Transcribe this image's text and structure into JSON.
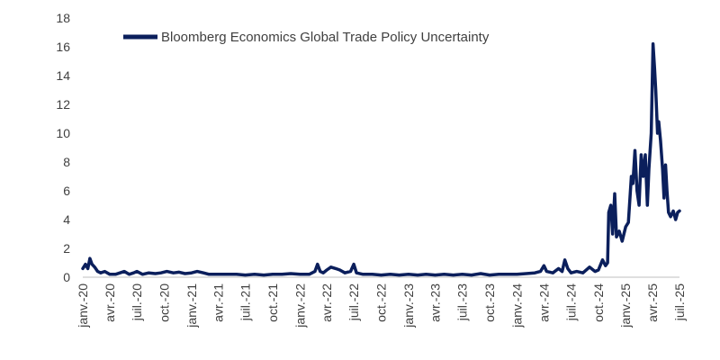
{
  "chart_data": {
    "type": "line",
    "title": "",
    "xlabel": "",
    "ylabel": "",
    "ylim": [
      0,
      18
    ],
    "yticks": [
      0,
      2,
      4,
      6,
      8,
      10,
      12,
      14,
      16,
      18
    ],
    "xlim": [
      "2020-01-01",
      "2025-07-01"
    ],
    "xticks": [
      {
        "date": "2020-01-01",
        "label": "janv.-20"
      },
      {
        "date": "2020-04-01",
        "label": "avr.-20"
      },
      {
        "date": "2020-07-01",
        "label": "juil.-20"
      },
      {
        "date": "2020-10-01",
        "label": "oct.-20"
      },
      {
        "date": "2021-01-01",
        "label": "janv.-21"
      },
      {
        "date": "2021-04-01",
        "label": "avr.-21"
      },
      {
        "date": "2021-07-01",
        "label": "juil.-21"
      },
      {
        "date": "2021-10-01",
        "label": "oct.-21"
      },
      {
        "date": "2022-01-01",
        "label": "janv.-22"
      },
      {
        "date": "2022-04-01",
        "label": "avr.-22"
      },
      {
        "date": "2022-07-01",
        "label": "juil.-22"
      },
      {
        "date": "2022-10-01",
        "label": "oct.-22"
      },
      {
        "date": "2023-01-01",
        "label": "janv.-23"
      },
      {
        "date": "2023-04-01",
        "label": "avr.-23"
      },
      {
        "date": "2023-07-01",
        "label": "juil.-23"
      },
      {
        "date": "2023-10-01",
        "label": "oct.-23"
      },
      {
        "date": "2024-01-01",
        "label": "janv.-24"
      },
      {
        "date": "2024-04-01",
        "label": "avr.-24"
      },
      {
        "date": "2024-07-01",
        "label": "juil.-24"
      },
      {
        "date": "2024-10-01",
        "label": "oct.-24"
      },
      {
        "date": "2025-01-01",
        "label": "janv.-25"
      },
      {
        "date": "2025-04-01",
        "label": "avr.-25"
      },
      {
        "date": "2025-07-01",
        "label": "juil.-25"
      }
    ],
    "grid": false,
    "legend_position": "top-left",
    "series": [
      {
        "name": "Bloomberg Economics Global Trade Policy Uncertainty",
        "color": "#0b1f5c",
        "points": [
          [
            "2020-01-01",
            0.6
          ],
          [
            "2020-01-10",
            0.9
          ],
          [
            "2020-01-18",
            0.6
          ],
          [
            "2020-01-25",
            1.3
          ],
          [
            "2020-02-01",
            0.9
          ],
          [
            "2020-02-10",
            0.7
          ],
          [
            "2020-02-20",
            0.4
          ],
          [
            "2020-03-01",
            0.3
          ],
          [
            "2020-03-15",
            0.4
          ],
          [
            "2020-04-01",
            0.2
          ],
          [
            "2020-04-20",
            0.2
          ],
          [
            "2020-05-05",
            0.3
          ],
          [
            "2020-05-20",
            0.4
          ],
          [
            "2020-06-05",
            0.2
          ],
          [
            "2020-06-20",
            0.3
          ],
          [
            "2020-07-01",
            0.4
          ],
          [
            "2020-07-20",
            0.2
          ],
          [
            "2020-08-10",
            0.3
          ],
          [
            "2020-09-01",
            0.25
          ],
          [
            "2020-09-20",
            0.3
          ],
          [
            "2020-10-10",
            0.4
          ],
          [
            "2020-11-01",
            0.3
          ],
          [
            "2020-11-20",
            0.35
          ],
          [
            "2020-12-10",
            0.25
          ],
          [
            "2021-01-01",
            0.3
          ],
          [
            "2021-01-20",
            0.4
          ],
          [
            "2021-02-10",
            0.3
          ],
          [
            "2021-03-01",
            0.2
          ],
          [
            "2021-04-01",
            0.2
          ],
          [
            "2021-05-01",
            0.2
          ],
          [
            "2021-06-01",
            0.2
          ],
          [
            "2021-07-01",
            0.15
          ],
          [
            "2021-08-01",
            0.2
          ],
          [
            "2021-09-01",
            0.15
          ],
          [
            "2021-10-01",
            0.2
          ],
          [
            "2021-11-01",
            0.2
          ],
          [
            "2021-12-01",
            0.25
          ],
          [
            "2022-01-01",
            0.2
          ],
          [
            "2022-02-01",
            0.2
          ],
          [
            "2022-02-20",
            0.4
          ],
          [
            "2022-03-01",
            0.9
          ],
          [
            "2022-03-10",
            0.4
          ],
          [
            "2022-03-20",
            0.3
          ],
          [
            "2022-04-01",
            0.5
          ],
          [
            "2022-04-15",
            0.7
          ],
          [
            "2022-05-01",
            0.6
          ],
          [
            "2022-05-15",
            0.5
          ],
          [
            "2022-06-01",
            0.3
          ],
          [
            "2022-06-20",
            0.4
          ],
          [
            "2022-07-01",
            0.9
          ],
          [
            "2022-07-10",
            0.3
          ],
          [
            "2022-08-01",
            0.2
          ],
          [
            "2022-09-01",
            0.2
          ],
          [
            "2022-10-01",
            0.15
          ],
          [
            "2022-11-01",
            0.2
          ],
          [
            "2022-12-01",
            0.15
          ],
          [
            "2023-01-01",
            0.2
          ],
          [
            "2023-02-01",
            0.15
          ],
          [
            "2023-03-01",
            0.2
          ],
          [
            "2023-04-01",
            0.15
          ],
          [
            "2023-05-01",
            0.2
          ],
          [
            "2023-06-01",
            0.15
          ],
          [
            "2023-07-01",
            0.2
          ],
          [
            "2023-08-01",
            0.15
          ],
          [
            "2023-09-01",
            0.25
          ],
          [
            "2023-10-01",
            0.15
          ],
          [
            "2023-11-01",
            0.2
          ],
          [
            "2023-12-01",
            0.2
          ],
          [
            "2024-01-01",
            0.2
          ],
          [
            "2024-02-01",
            0.25
          ],
          [
            "2024-03-01",
            0.3
          ],
          [
            "2024-03-20",
            0.4
          ],
          [
            "2024-04-01",
            0.8
          ],
          [
            "2024-04-10",
            0.4
          ],
          [
            "2024-05-01",
            0.3
          ],
          [
            "2024-05-20",
            0.6
          ],
          [
            "2024-06-01",
            0.4
          ],
          [
            "2024-06-10",
            1.2
          ],
          [
            "2024-06-20",
            0.6
          ],
          [
            "2024-07-01",
            0.3
          ],
          [
            "2024-07-20",
            0.4
          ],
          [
            "2024-08-10",
            0.3
          ],
          [
            "2024-09-01",
            0.7
          ],
          [
            "2024-09-20",
            0.4
          ],
          [
            "2024-10-01",
            0.5
          ],
          [
            "2024-10-15",
            1.2
          ],
          [
            "2024-10-25",
            0.8
          ],
          [
            "2024-11-01",
            1.0
          ],
          [
            "2024-11-05",
            4.5
          ],
          [
            "2024-11-12",
            5.0
          ],
          [
            "2024-11-18",
            3.0
          ],
          [
            "2024-11-25",
            5.8
          ],
          [
            "2024-12-01",
            2.8
          ],
          [
            "2024-12-10",
            3.2
          ],
          [
            "2024-12-20",
            2.5
          ],
          [
            "2025-01-01",
            3.5
          ],
          [
            "2025-01-10",
            3.8
          ],
          [
            "2025-01-20",
            7.0
          ],
          [
            "2025-01-25",
            6.5
          ],
          [
            "2025-02-01",
            8.8
          ],
          [
            "2025-02-08",
            6.0
          ],
          [
            "2025-02-15",
            5.0
          ],
          [
            "2025-02-22",
            8.5
          ],
          [
            "2025-03-01",
            7.0
          ],
          [
            "2025-03-08",
            8.5
          ],
          [
            "2025-03-15",
            5.0
          ],
          [
            "2025-03-20",
            7.5
          ],
          [
            "2025-03-28",
            10.0
          ],
          [
            "2025-04-03",
            16.2
          ],
          [
            "2025-04-08",
            14.5
          ],
          [
            "2025-04-12",
            13.0
          ],
          [
            "2025-04-18",
            10.0
          ],
          [
            "2025-04-22",
            10.8
          ],
          [
            "2025-04-28",
            9.5
          ],
          [
            "2025-05-05",
            7.5
          ],
          [
            "2025-05-10",
            5.5
          ],
          [
            "2025-05-15",
            7.8
          ],
          [
            "2025-05-20",
            6.0
          ],
          [
            "2025-05-25",
            4.5
          ],
          [
            "2025-06-01",
            4.2
          ],
          [
            "2025-06-10",
            4.6
          ],
          [
            "2025-06-18",
            4.0
          ],
          [
            "2025-06-25",
            4.5
          ],
          [
            "2025-07-01",
            4.6
          ]
        ]
      }
    ]
  }
}
